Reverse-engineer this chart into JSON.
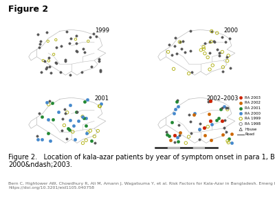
{
  "title": "Figure 2",
  "caption_line1": "Figure 2.   Location of kala-azar patients by year of symptom onset in para 1, Bangladesh,",
  "caption_line2": "2000&ndash;2003.",
  "citation": "Bern C, Hightower AW, Chowdhury R, Ali M, Amann J, Wagatsuma Y, et al. Risk Factors for Kala-Azar in Bangladesh. Emerg Infect Dis. 2005;11(5):655-662.\nhttps://doi.org/10.3201/eid1105.040758",
  "background": "#ffffff",
  "map_line_color": "#bbbbbb",
  "panel_labels": [
    "1999",
    "2000",
    "2001",
    "2002–2003"
  ],
  "legend_entries": [
    {
      "label": "RA 2003",
      "color": "#cc2200",
      "filled": true
    },
    {
      "label": "RA 2002",
      "color": "#cc6600",
      "filled": true
    },
    {
      "label": "RA 2001",
      "color": "#228833",
      "filled": true
    },
    {
      "label": "RA 2000",
      "color": "#4488cc",
      "filled": true
    },
    {
      "label": "RA 1999",
      "color": "#aaaa00",
      "filled": false
    },
    {
      "label": "RA 1998",
      "color": "#888888",
      "filled": false
    }
  ],
  "dot_colors": {
    "gray": "#555555",
    "yellow": "#aaaa00",
    "blue": "#4488cc",
    "teal": "#228833",
    "red": "#cc2200",
    "orange": "#cc6600"
  },
  "title_fontsize": 9,
  "caption_fontsize": 7,
  "citation_fontsize": 4.5,
  "label_fontsize": 6,
  "legend_fontsize": 4
}
